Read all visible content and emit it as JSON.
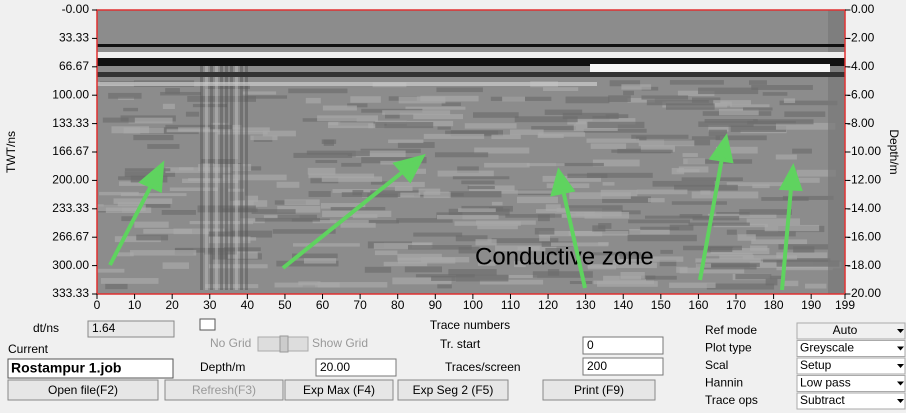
{
  "plot": {
    "y_label": "TWT/ns",
    "y2_label": "Depth/m",
    "x_label": "Trace numbers",
    "ylim": [
      0,
      333.33
    ],
    "yticks": [
      {
        "value": 0,
        "label": "-0.00"
      },
      33.33,
      66.67,
      {
        "value": 100,
        "label": "100.00"
      },
      133.33,
      166.67,
      {
        "value": 200,
        "label": "200.00"
      },
      233.33,
      266.67,
      {
        "value": 300,
        "label": "300.00"
      },
      333.33
    ],
    "y2lim": [
      0,
      -20
    ],
    "y2ticks": [
      {
        "value": 0,
        "label": "-0.00"
      },
      {
        "value": -2,
        "label": "-2.00"
      },
      {
        "value": -4,
        "label": "-4.00"
      },
      {
        "value": -6,
        "label": "-6.00"
      },
      {
        "value": -8,
        "label": "-8.00"
      },
      {
        "value": -10,
        "label": "-10.00"
      },
      {
        "value": -12,
        "label": "-12.00"
      },
      {
        "value": -14,
        "label": "-14.00"
      },
      {
        "value": -16,
        "label": "-16.00"
      },
      {
        "value": -18,
        "label": "-18.00"
      },
      {
        "value": -20,
        "label": "-20.00"
      }
    ],
    "xlim": [
      0,
      199
    ],
    "xticks": [
      0,
      10,
      20,
      30,
      40,
      50,
      60,
      70,
      80,
      90,
      100,
      110,
      120,
      130,
      140,
      150,
      160,
      170,
      180,
      190,
      199
    ],
    "annotation": "Conductive zone"
  },
  "controls": {
    "dt_label": "dt/ns",
    "dt_value": "1.64",
    "current_label": "Current",
    "current_file": "Rostampur 1.job",
    "no_grid": "No Grid",
    "show_grid": "Show Grid",
    "tr_start_label": "Tr. start",
    "tr_start": "0",
    "depth_label": "Depth/m",
    "depth": "20.00",
    "traces_label": "Traces/screen",
    "traces": "200",
    "buttons": [
      "Open file(F2)",
      "Refresh(F3)",
      "Exp Max (F4)",
      "Exp Seg 2 (F5)",
      "Print (F9)"
    ],
    "settings": [
      {
        "label": "Ref mode",
        "value": "Auto"
      },
      {
        "label": "Plot type",
        "value": "Greyscale"
      },
      {
        "label": "Scal",
        "value": "Setup"
      },
      {
        "label": "Hannin",
        "value": "Low pass"
      },
      {
        "label": "Trace ops",
        "value": "Subtract"
      }
    ]
  }
}
